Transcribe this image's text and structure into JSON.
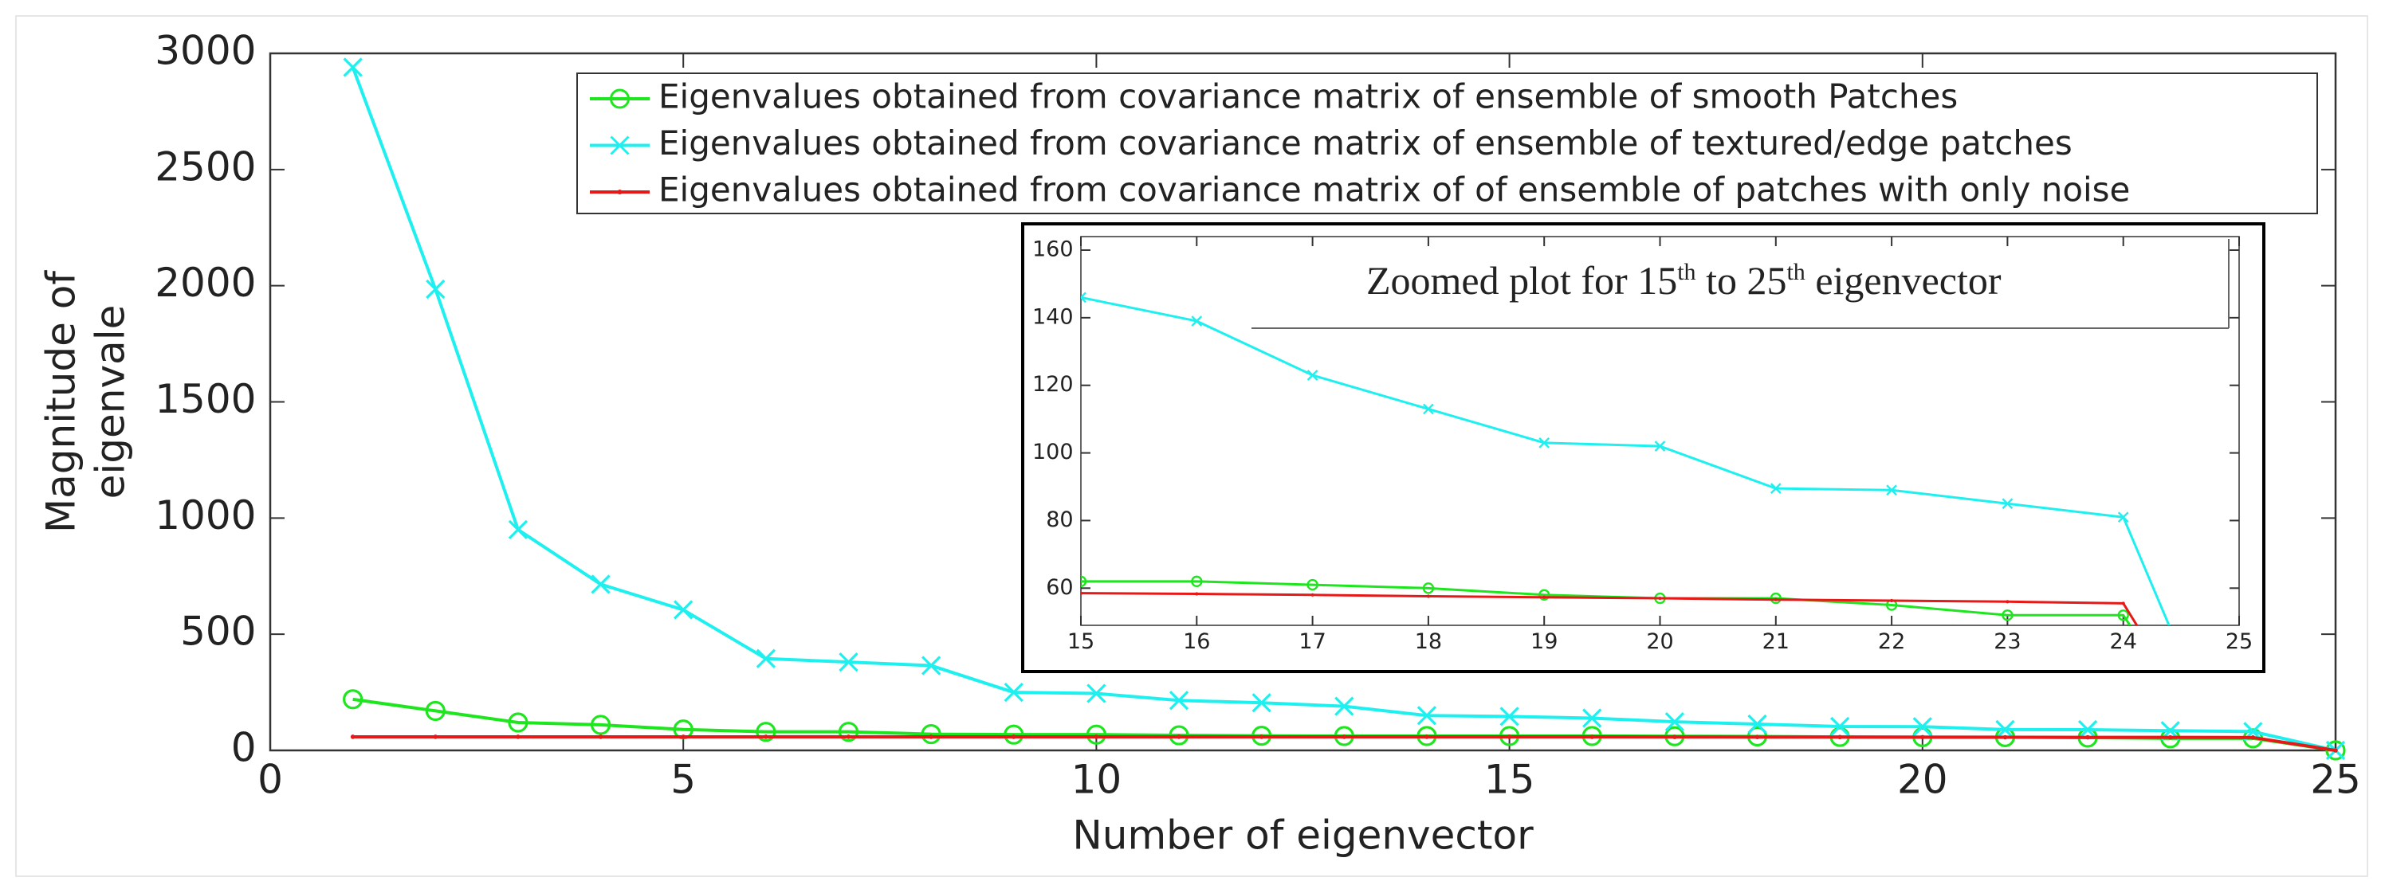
{
  "chart_data": [
    {
      "type": "line",
      "xlabel": "Number of eigenvector",
      "ylabel": [
        "Magnitude of",
        "eigenvale"
      ],
      "x": [
        1,
        2,
        3,
        4,
        5,
        6,
        7,
        8,
        9,
        10,
        11,
        12,
        13,
        14,
        15,
        16,
        17,
        18,
        19,
        20,
        21,
        22,
        23,
        24,
        25
      ],
      "series": [
        {
          "name": "Eigenvalues obtained from covariance matrix of ensemble of smooth Patches",
          "color": "#1ee61e",
          "marker": "o",
          "values": [
            220,
            170,
            120,
            110,
            90,
            80,
            80,
            70,
            68,
            68,
            65,
            63,
            62,
            62,
            62,
            62,
            61,
            60,
            58,
            57,
            57,
            55,
            52,
            52,
            0
          ]
        },
        {
          "name": "Eigenvalues obtained from covariance matrix of ensemble of textured/edge patches",
          "color": "#1ef0f0",
          "marker": "x",
          "values": [
            2940,
            1985,
            950,
            715,
            605,
            395,
            380,
            365,
            250,
            245,
            215,
            205,
            190,
            150,
            146,
            139,
            123,
            113,
            103,
            102,
            89.5,
            89,
            85,
            81,
            0
          ]
        },
        {
          "name": "Eigenvalues obtained from covariance matrix of of ensemble of patches with only noise",
          "color": "#e61919",
          "marker": ".",
          "values": [
            58.5,
            58.5,
            58.5,
            58.5,
            58.5,
            58.5,
            58.5,
            58.5,
            58.5,
            58.5,
            58.5,
            58.5,
            58.5,
            58.5,
            58.5,
            58.3,
            58,
            57.6,
            57.3,
            57,
            56.6,
            56.3,
            56,
            55.5,
            0
          ]
        }
      ],
      "xlim": [
        0,
        25
      ],
      "xticks": [
        0,
        5,
        10,
        15,
        20,
        25
      ],
      "ylim": [
        0,
        3000
      ],
      "yticks": [
        0,
        500,
        1000,
        1500,
        2000,
        2500,
        3000
      ]
    },
    {
      "type": "line",
      "title_parts": [
        "Zoomed plot for 15",
        "th",
        " to 25",
        "th",
        " eigenvector"
      ],
      "x": [
        15,
        16,
        17,
        18,
        19,
        20,
        21,
        22,
        23,
        24,
        25
      ],
      "series": [
        {
          "color": "#1ee61e",
          "marker": "o",
          "values": [
            62,
            62,
            61,
            60,
            58,
            57,
            57,
            55,
            52,
            52,
            0
          ]
        },
        {
          "color": "#1ef0f0",
          "marker": "x",
          "values": [
            146,
            139,
            123,
            113,
            103,
            102,
            89.5,
            89,
            85,
            81,
            0
          ]
        },
        {
          "color": "#e61919",
          "marker": ".",
          "values": [
            58.5,
            58.3,
            58,
            57.6,
            57.3,
            57,
            56.6,
            56.3,
            56,
            55.5,
            0
          ]
        }
      ],
      "xlim": [
        15,
        25
      ],
      "xticks": [
        15,
        16,
        17,
        18,
        19,
        20,
        21,
        22,
        23,
        24,
        25
      ],
      "ylim": [
        49,
        164
      ],
      "yticks": [
        60,
        80,
        100,
        120,
        140,
        160
      ]
    }
  ]
}
